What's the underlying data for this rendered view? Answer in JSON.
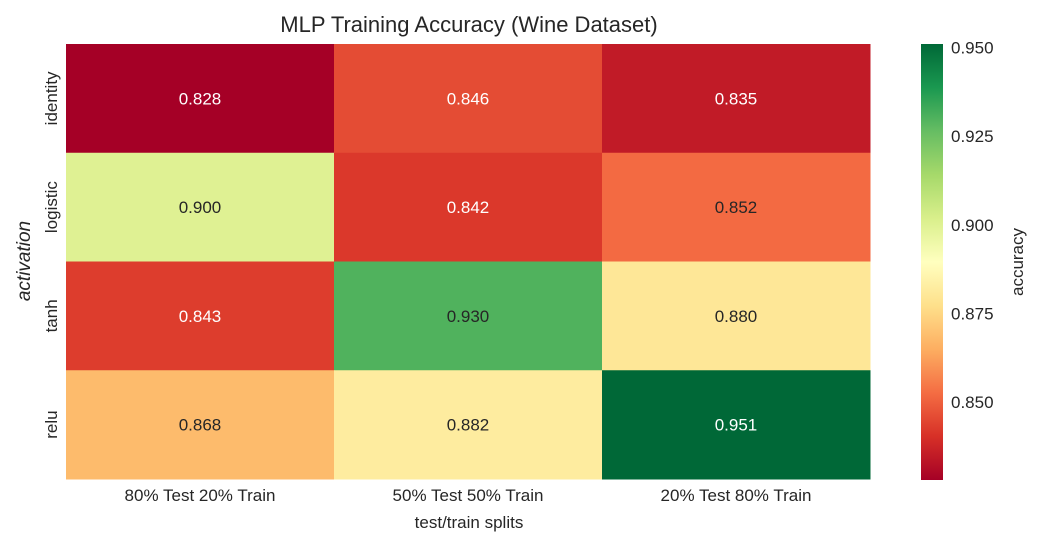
{
  "chart_data": {
    "type": "heatmap",
    "title": "MLP Training Accuracy (Wine Dataset)",
    "xlabel": "test/train splits",
    "ylabel": "activation",
    "x_categories": [
      "80% Test 20% Train",
      "50% Test 50% Train",
      "20% Test 80% Train"
    ],
    "y_categories": [
      "identity",
      "logistic",
      "tanh",
      "relu"
    ],
    "values": [
      [
        0.828,
        0.846,
        0.835
      ],
      [
        0.9,
        0.842,
        0.852
      ],
      [
        0.843,
        0.93,
        0.88
      ],
      [
        0.868,
        0.882,
        0.951
      ]
    ],
    "value_labels": [
      [
        "0.828",
        "0.846",
        "0.835"
      ],
      [
        "0.900",
        "0.842",
        "0.852"
      ],
      [
        "0.843",
        "0.930",
        "0.880"
      ],
      [
        "0.868",
        "0.882",
        "0.951"
      ]
    ],
    "colorbar": {
      "label": "accuracy",
      "colormap": "RdYlGn",
      "vmin": 0.828,
      "vmax": 0.951,
      "ticks": [
        0.85,
        0.875,
        0.9,
        0.925,
        0.95
      ],
      "tick_labels": [
        "0.850",
        "0.875",
        "0.900",
        "0.925",
        "0.950"
      ]
    },
    "grid": false
  }
}
